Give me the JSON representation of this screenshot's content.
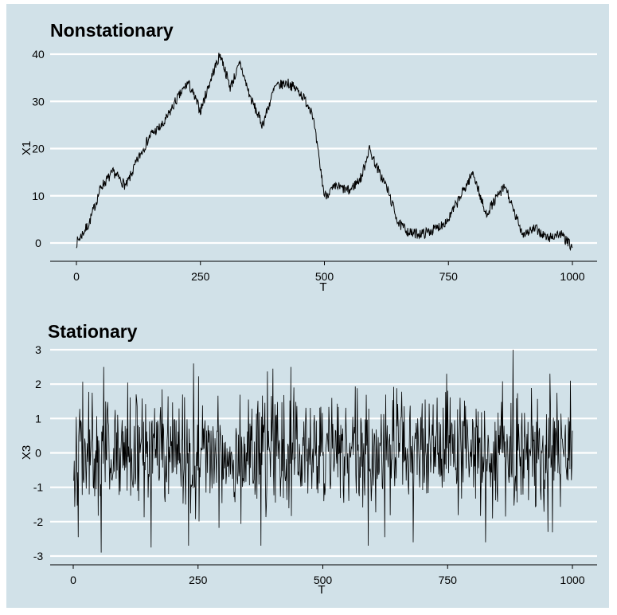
{
  "colors": {
    "panel_bg": "#d1e1e8",
    "gridline": "#ffffff",
    "line": "#000000",
    "axis": "#000000"
  },
  "chart_data": [
    {
      "type": "line",
      "title": "Nonstationary",
      "xlabel": "T",
      "ylabel": "X1",
      "xlim": [
        0,
        1000
      ],
      "ylim": [
        -4,
        42
      ],
      "x_ticks": [
        0,
        250,
        500,
        750,
        1000
      ],
      "x_tick_labels": [
        "0",
        "250",
        "500",
        "750",
        "1000"
      ],
      "y_ticks": [
        0,
        10,
        20,
        30,
        40
      ],
      "y_tick_labels": [
        "0",
        "10",
        "20",
        "30",
        "40"
      ],
      "grid": "horizontal",
      "x": [
        0,
        25,
        50,
        75,
        100,
        125,
        150,
        175,
        200,
        225,
        250,
        275,
        290,
        310,
        330,
        350,
        375,
        400,
        425,
        450,
        475,
        500,
        525,
        550,
        575,
        590,
        610,
        625,
        650,
        675,
        700,
        725,
        750,
        775,
        800,
        825,
        850,
        865,
        880,
        900,
        925,
        950,
        975,
        1000
      ],
      "values": [
        0,
        4,
        12,
        15,
        12,
        18,
        23,
        25,
        30,
        34,
        28,
        36,
        40,
        33,
        38,
        31,
        25,
        33,
        34,
        32,
        28,
        10,
        12,
        11,
        14,
        20,
        15,
        12,
        4,
        2,
        2,
        3,
        5,
        10,
        15,
        6,
        10,
        12,
        7,
        2,
        3,
        1,
        2,
        -1
      ]
    },
    {
      "type": "line",
      "title": "Stationary",
      "xlabel": "T",
      "ylabel": "X3",
      "xlim": [
        0,
        1000
      ],
      "ylim": [
        -3.2,
        3.2
      ],
      "x_ticks": [
        0,
        250,
        500,
        750,
        1000
      ],
      "x_tick_labels": [
        "0",
        "250",
        "500",
        "750",
        "1000"
      ],
      "y_ticks": [
        -3,
        -2,
        -1,
        0,
        1,
        2,
        3
      ],
      "y_tick_labels": [
        "-3",
        "-2",
        "-1",
        "0",
        "1",
        "2",
        "3"
      ],
      "grid": "horizontal",
      "n_points": 1000,
      "sd": 0.85,
      "extremes": [
        {
          "x": 55,
          "y": -2.9
        },
        {
          "x": 60,
          "y": 2.5
        },
        {
          "x": 155,
          "y": -2.75
        },
        {
          "x": 230,
          "y": -2.7
        },
        {
          "x": 240,
          "y": 2.6
        },
        {
          "x": 375,
          "y": -2.7
        },
        {
          "x": 435,
          "y": 2.5
        },
        {
          "x": 590,
          "y": -2.7
        },
        {
          "x": 680,
          "y": -2.6
        },
        {
          "x": 825,
          "y": -2.6
        },
        {
          "x": 880,
          "y": 3.0
        },
        {
          "x": 950,
          "y": -2.3
        },
        {
          "x": 995,
          "y": 2.1
        }
      ]
    }
  ]
}
